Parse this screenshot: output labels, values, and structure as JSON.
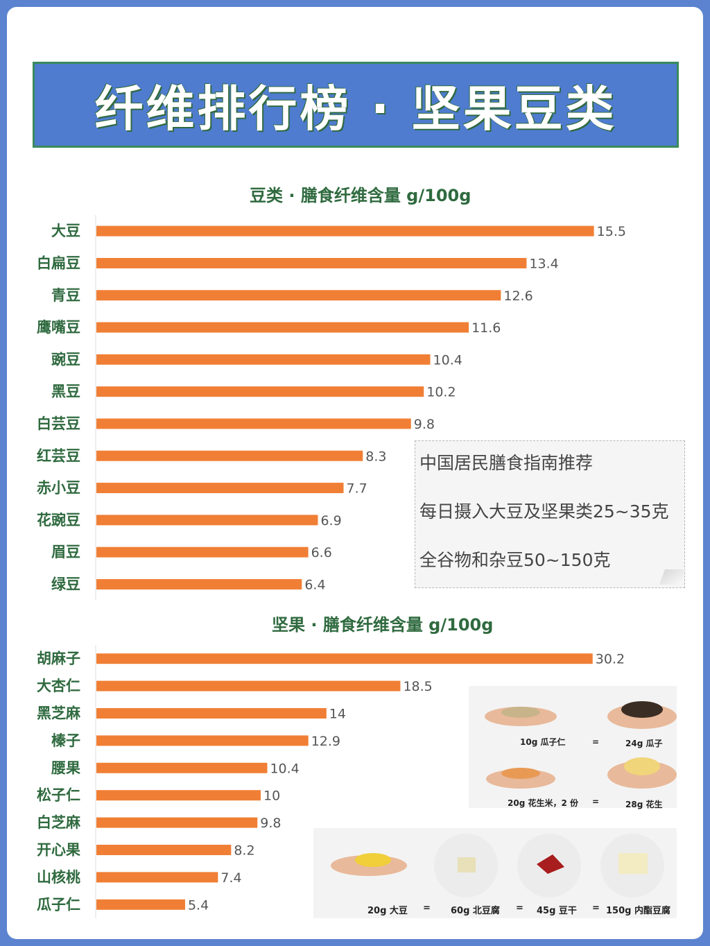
{
  "banner": {
    "title": "纤维排行榜 · 坚果豆类"
  },
  "sections": {
    "legumes_title": "豆类 · 膳食纤维含量  g/100g",
    "nuts_title": "坚果 · 膳食纤维含量  g/100g"
  },
  "note": {
    "line1": "中国居民膳食指南推荐",
    "line2": "每日摄入大豆及坚果类25~35克",
    "line3": "全谷物和杂豆50~150克"
  },
  "illustrations": {
    "top_labels": [
      "10g 瓜子仁",
      "=",
      "24g 瓜子",
      "20g 花生米，2 份",
      "=",
      "28g 花生"
    ],
    "bottom_labels": [
      "20g 大豆",
      "=",
      "60g 北豆腐",
      "=",
      "45g 豆干",
      "=",
      "150g 内酯豆腐"
    ]
  },
  "colors": {
    "bar": "#f07f35",
    "label": "#2f6a3f",
    "banner": "#4f7ccf",
    "background": "#5b83cf"
  },
  "chart_data": [
    {
      "type": "bar",
      "orientation": "horizontal",
      "title": "豆类 · 膳食纤维含量  g/100g",
      "categories": [
        "大豆",
        "白扁豆",
        "青豆",
        "鹰嘴豆",
        "豌豆",
        "黑豆",
        "白芸豆",
        "红芸豆",
        "赤小豆",
        "花豌豆",
        "眉豆",
        "绿豆"
      ],
      "values": [
        15.5,
        13.4,
        12.6,
        11.6,
        10.4,
        10.2,
        9.8,
        8.3,
        7.7,
        6.9,
        6.6,
        6.4
      ],
      "value_labels": [
        "15.5",
        "13.4",
        "12.6",
        "11.6",
        "10.4",
        "10.2",
        "9.8",
        "8.3",
        "7.7",
        "6.9",
        "6.6",
        "6.4"
      ]
    },
    {
      "type": "bar",
      "orientation": "horizontal",
      "title": "坚果 · 膳食纤维含量  g/100g",
      "categories": [
        "胡麻子",
        "大杏仁",
        "黑芝麻",
        "榛子",
        "腰果",
        "松子仁",
        "白芝麻",
        "开心果",
        "山核桃",
        "瓜子仁"
      ],
      "values": [
        30.2,
        18.5,
        14,
        12.9,
        10.4,
        10,
        9.8,
        8.2,
        7.4,
        5.4
      ],
      "value_labels": [
        "30.2",
        "18.5",
        "14",
        "12.9",
        "10.4",
        "10",
        "9.8",
        "8.2",
        "7.4",
        "5.4"
      ]
    }
  ]
}
